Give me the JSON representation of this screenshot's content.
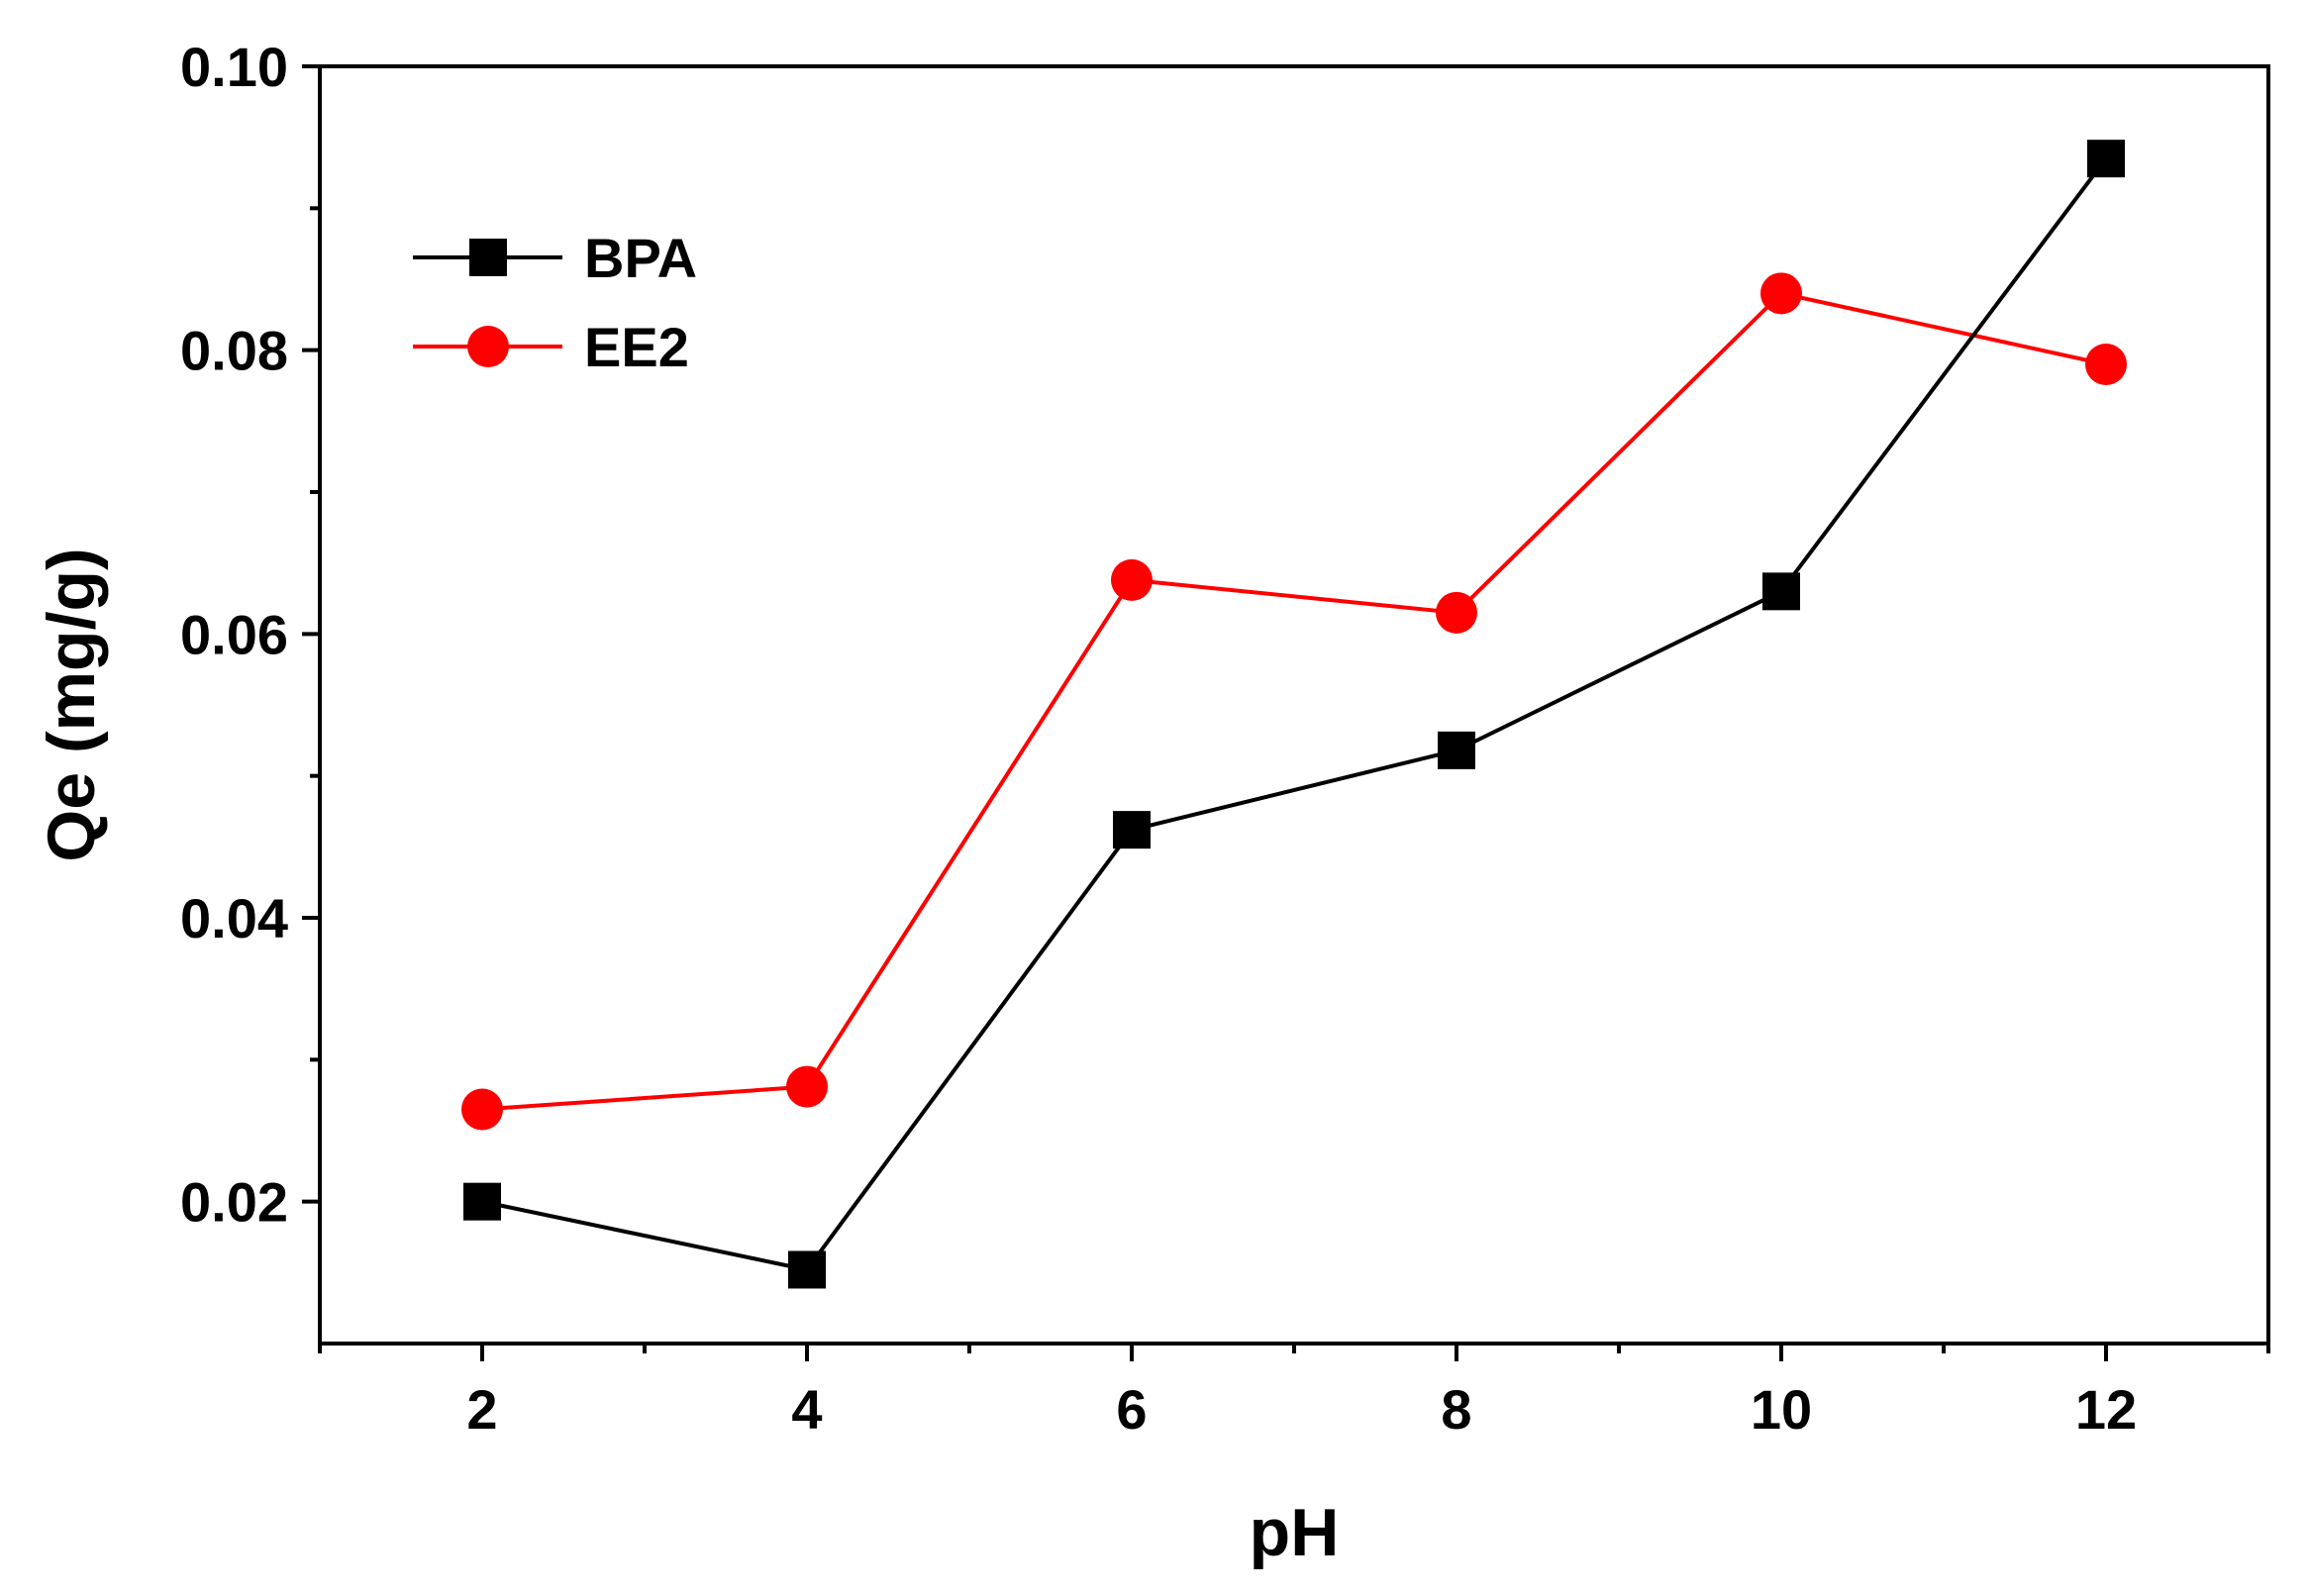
{
  "chart_data": {
    "type": "line",
    "title": "",
    "xlabel": "pH",
    "ylabel": "Qe (mg/g)",
    "x": [
      2,
      4,
      6,
      8,
      10,
      12
    ],
    "xlim": [
      1,
      13
    ],
    "ylim": [
      0.01,
      0.1
    ],
    "xticks": [
      2,
      4,
      6,
      8,
      10,
      12
    ],
    "xtick_labels": [
      "2",
      "4",
      "6",
      "8",
      "10",
      "12"
    ],
    "yticks": [
      0.02,
      0.04,
      0.06,
      0.08,
      0.1
    ],
    "ytick_labels": [
      "0.02",
      "0.04",
      "0.06",
      "0.08",
      "0.10"
    ],
    "grid": false,
    "legend_position": "top-left",
    "series": [
      {
        "name": "BPA",
        "color": "#000000",
        "marker": "square",
        "values": [
          0.02,
          0.0152,
          0.0462,
          0.0518,
          0.063,
          0.0935
        ]
      },
      {
        "name": "EE2",
        "color": "#ff0000",
        "marker": "circle",
        "values": [
          0.0265,
          0.0281,
          0.0638,
          0.0615,
          0.084,
          0.079
        ]
      }
    ]
  }
}
